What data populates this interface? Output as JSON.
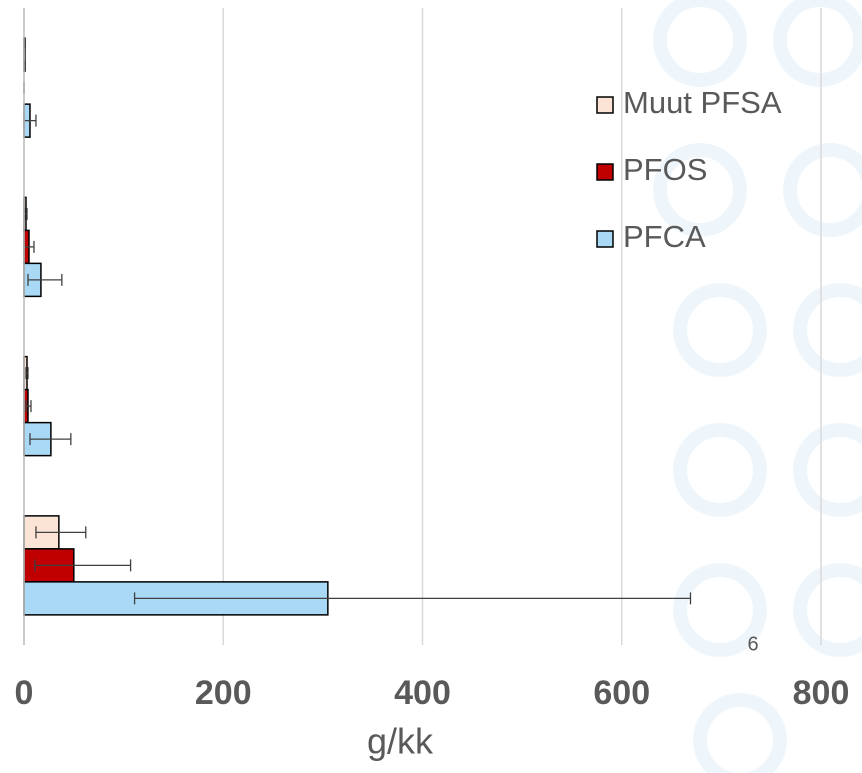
{
  "chart_data": {
    "type": "hbar",
    "orientation": "horizontal",
    "categories": [
      null,
      null,
      null,
      null
    ],
    "series": [
      {
        "name": "Muut PFSA",
        "color": "#fbe4d5",
        "values": [
          1,
          2,
          3,
          35
        ],
        "errors_minus": [
          0,
          1,
          1,
          23
        ],
        "errors_plus": [
          0,
          1,
          1,
          27
        ]
      },
      {
        "name": "PFOS",
        "color": "#c00000",
        "values": [
          0,
          5,
          4,
          50
        ],
        "errors_minus": [
          0,
          5,
          2,
          39
        ],
        "errors_plus": [
          0,
          5,
          3,
          57
        ]
      },
      {
        "name": "PFCA",
        "color": "#a9d9f5",
        "values": [
          6,
          17,
          27,
          305
        ],
        "errors_minus": [
          6,
          13,
          21,
          194
        ],
        "errors_plus": [
          6,
          21,
          20,
          364
        ]
      }
    ],
    "xlabel": "g/kk",
    "xlim": [
      0,
      800
    ],
    "xticks": [
      0,
      200,
      400,
      600,
      800
    ],
    "grid": true,
    "legend": "top-right",
    "page_number": "6"
  }
}
